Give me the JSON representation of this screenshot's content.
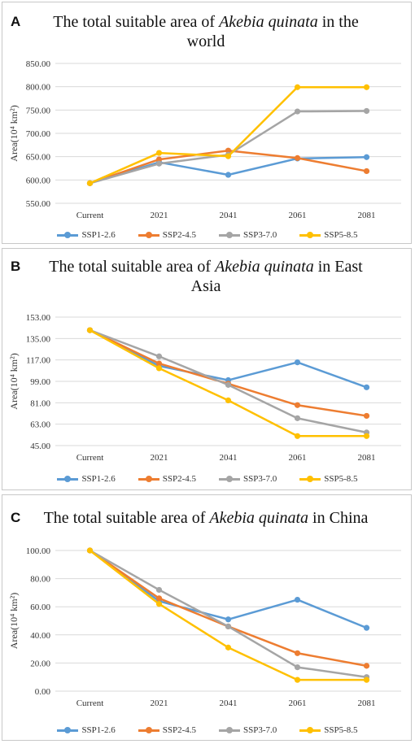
{
  "colors": {
    "SSP1-2.6": "#5b9bd5",
    "SSP2-4.5": "#ed7d31",
    "SSP3-7.0": "#a5a5a5",
    "SSP5-8.5": "#ffc000"
  },
  "chart_data": [
    {
      "type": "line",
      "panel_letter": "A",
      "title_before": "The total suitable area of ",
      "title_italic": "Akebia quinata",
      "title_after": " in the world",
      "ylabel": "Area(10⁴ km²)",
      "categories": [
        "Current",
        "2021",
        "2041",
        "2061",
        "2081"
      ],
      "ylim": [
        550,
        850
      ],
      "yticks": [
        "550.00",
        "600.00",
        "650.00",
        "700.00",
        "750.00",
        "800.00",
        "850.00"
      ],
      "series": [
        {
          "name": "SSP1-2.6",
          "values": [
            593,
            638,
            611,
            646,
            649
          ]
        },
        {
          "name": "SSP2-4.5",
          "values": [
            593,
            644,
            663,
            647,
            619
          ]
        },
        {
          "name": "SSP3-7.0",
          "values": [
            593,
            635,
            654,
            747,
            748
          ]
        },
        {
          "name": "SSP5-8.5",
          "values": [
            593,
            658,
            651,
            799,
            799
          ]
        }
      ]
    },
    {
      "type": "line",
      "panel_letter": "B",
      "title_before": "The total suitable area of ",
      "title_italic": "Akebia quinata",
      "title_after": " in East Asia",
      "ylabel": "Area(10⁴ km²)",
      "categories": [
        "Current",
        "2021",
        "2041",
        "2061",
        "2081"
      ],
      "ylim": [
        45,
        153
      ],
      "yticks": [
        "45.00",
        "63.00",
        "81.00",
        "99.00",
        "117.00",
        "135.00",
        "153.00"
      ],
      "series": [
        {
          "name": "SSP1-2.6",
          "values": [
            142,
            112,
            100,
            115,
            94
          ]
        },
        {
          "name": "SSP2-4.5",
          "values": [
            142,
            114,
            97,
            79,
            70
          ]
        },
        {
          "name": "SSP3-7.0",
          "values": [
            142,
            120,
            96,
            68,
            56
          ]
        },
        {
          "name": "SSP5-8.5",
          "values": [
            142,
            110,
            83,
            53,
            53
          ]
        }
      ]
    },
    {
      "type": "line",
      "panel_letter": "C",
      "title_before": "The total suitable area of ",
      "title_italic": "Akebia quinata",
      "title_after": " in China",
      "ylabel": "Area(10⁴ km²)",
      "categories": [
        "Current",
        "2021",
        "2041",
        "2061",
        "2081"
      ],
      "ylim": [
        0,
        100
      ],
      "yticks": [
        "0.00",
        "20.00",
        "40.00",
        "60.00",
        "80.00",
        "100.00"
      ],
      "series": [
        {
          "name": "SSP1-2.6",
          "values": [
            100,
            64,
            51,
            65,
            45
          ]
        },
        {
          "name": "SSP2-4.5",
          "values": [
            100,
            66,
            46,
            27,
            18
          ]
        },
        {
          "name": "SSP3-7.0",
          "values": [
            100,
            72,
            46,
            17,
            10
          ]
        },
        {
          "name": "SSP5-8.5",
          "values": [
            100,
            62,
            31,
            8,
            8
          ]
        }
      ]
    }
  ]
}
